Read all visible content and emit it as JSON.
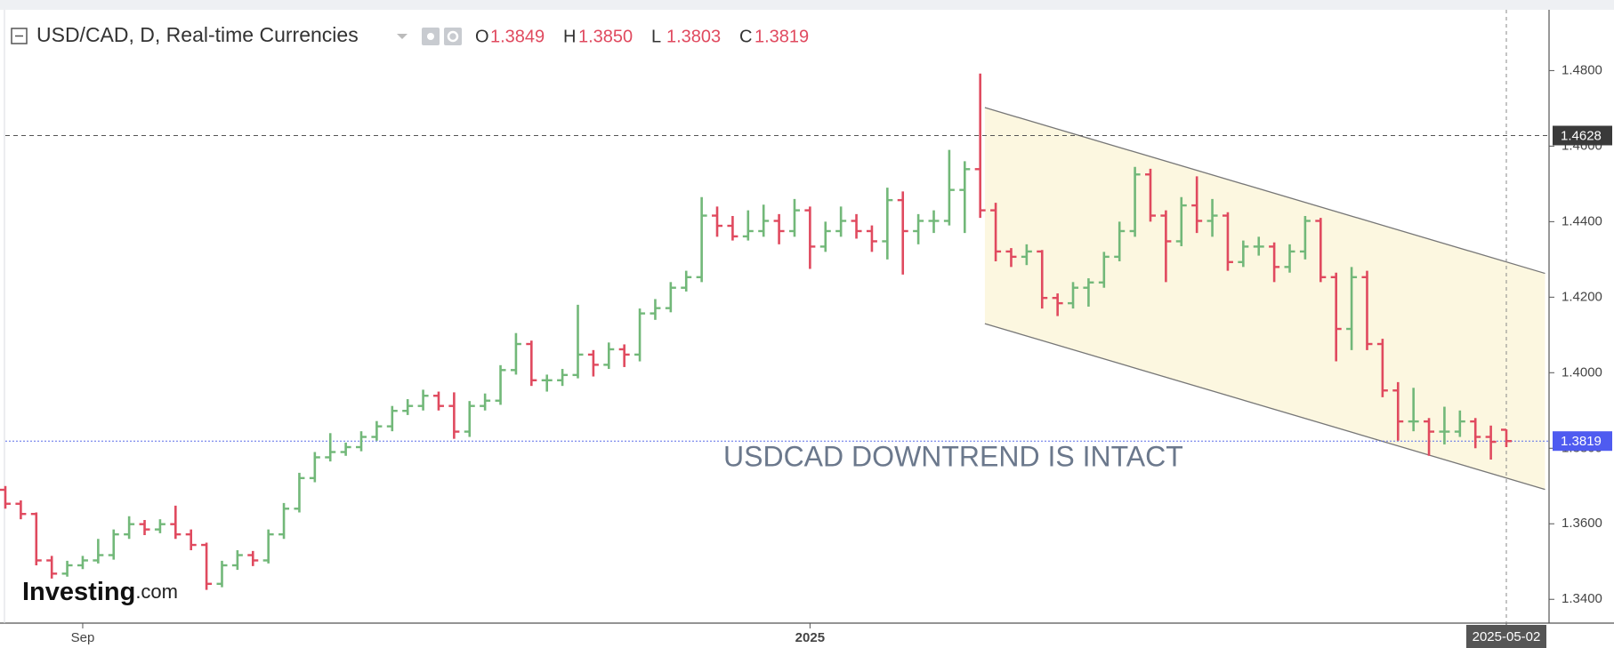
{
  "chart_data": {
    "type": "ohlc",
    "title": "USD/CAD, D, Real-time Currencies",
    "header_values": [
      {
        "key": "O",
        "text": "1.3849"
      },
      {
        "key": "H",
        "text": "1.3850"
      },
      {
        "key": "L",
        "text": "1.3803"
      },
      {
        "key": "C",
        "text": "1.3819"
      }
    ],
    "annotation": "USDCAD DOWNTREND IS INTACT",
    "logo": [
      "Investing",
      ".com"
    ],
    "up_color": "#72b879",
    "down_color": "#e04a5f",
    "categories": [
      null,
      null,
      null,
      null,
      null,
      "Sep",
      null,
      null,
      null,
      null,
      null,
      null,
      null,
      null,
      null,
      null,
      null,
      null,
      null,
      null,
      null,
      null,
      null,
      null,
      null,
      null,
      null,
      null,
      null,
      null,
      null,
      null,
      null,
      null,
      null,
      null,
      null,
      null,
      null,
      null,
      null,
      null,
      null,
      null,
      null,
      null,
      null,
      null,
      null,
      null,
      null,
      null,
      "2025",
      null,
      null,
      null,
      null,
      null,
      null,
      null,
      null,
      null,
      null,
      null,
      null,
      null,
      null,
      null,
      null,
      null,
      null,
      null,
      null,
      null,
      null,
      null,
      null,
      null,
      null,
      null,
      null,
      null,
      null,
      null,
      null,
      null,
      null,
      null,
      null,
      null,
      null,
      null,
      null,
      null,
      null,
      null,
      null,
      "2025-05-02"
    ],
    "open": [
      1.369,
      1.3653,
      1.3626,
      1.3503,
      1.3468,
      1.349,
      1.3503,
      1.3517,
      1.3572,
      1.3599,
      1.3585,
      1.3599,
      1.3572,
      1.3544,
      1.3441,
      1.349,
      1.3517,
      1.3503,
      1.3572,
      1.364,
      1.3721,
      1.3776,
      1.379,
      1.3803,
      1.383,
      1.3858,
      1.3899,
      1.3912,
      1.3939,
      1.3912,
      1.3844,
      1.3912,
      1.3926,
      1.4007,
      1.4076,
      1.398,
      1.398,
      1.3994,
      1.4048,
      1.4021,
      1.4062,
      1.4048,
      1.4157,
      1.4171,
      1.4225,
      1.4253,
      1.4416,
      1.4389,
      1.4361,
      1.4375,
      1.4402,
      1.4375,
      1.443,
      1.4334,
      1.4375,
      1.4402,
      1.4375,
      1.4348,
      1.4457,
      1.4375,
      1.4402,
      1.4402,
      1.4484,
      1.4539,
      1.443,
      1.4321,
      1.4307,
      1.4321,
      1.4198,
      1.4184,
      1.4225,
      1.4239,
      1.4307,
      1.4375,
      1.4525,
      1.4416,
      1.4348,
      1.4443,
      1.4402,
      1.4416,
      1.4293,
      1.4334,
      1.4334,
      1.428,
      1.4321,
      1.4402,
      1.4253,
      1.4116,
      1.4253,
      1.4076,
      1.3953,
      1.3871,
      1.3871,
      1.3844,
      1.3844,
      1.3871,
      1.383,
      1.3849
    ],
    "high": [
      1.37,
      1.3662,
      1.363,
      1.3515,
      1.3502,
      1.3515,
      1.356,
      1.3585,
      1.362,
      1.361,
      1.3612,
      1.3648,
      1.3585,
      1.355,
      1.3502,
      1.353,
      1.3528,
      1.3585,
      1.3655,
      1.3735,
      1.379,
      1.384,
      1.3815,
      1.3845,
      1.3872,
      1.3912,
      1.393,
      1.3955,
      1.395,
      1.3948,
      1.3925,
      1.3945,
      1.402,
      1.4105,
      1.4085,
      1.3995,
      1.401,
      1.418,
      1.406,
      1.408,
      1.4075,
      1.417,
      1.4195,
      1.424,
      1.427,
      1.4465,
      1.444,
      1.4415,
      1.443,
      1.4445,
      1.442,
      1.446,
      1.444,
      1.44,
      1.444,
      1.442,
      1.439,
      1.449,
      1.448,
      1.442,
      1.443,
      1.459,
      1.456,
      1.4792,
      1.445,
      1.433,
      1.434,
      1.4325,
      1.421,
      1.424,
      1.425,
      1.432,
      1.44,
      1.4545,
      1.454,
      1.443,
      1.4465,
      1.452,
      1.446,
      1.4425,
      1.435,
      1.436,
      1.4345,
      1.434,
      1.4415,
      1.441,
      1.4265,
      1.428,
      1.427,
      1.409,
      1.3975,
      1.396,
      1.388,
      1.391,
      1.39,
      1.388,
      1.386,
      1.385
    ],
    "low": [
      1.364,
      1.3612,
      1.349,
      1.3455,
      1.346,
      1.348,
      1.3495,
      1.3505,
      1.356,
      1.357,
      1.3575,
      1.356,
      1.353,
      1.3425,
      1.3432,
      1.3478,
      1.3488,
      1.3495,
      1.356,
      1.363,
      1.371,
      1.3765,
      1.378,
      1.3792,
      1.382,
      1.3845,
      1.3888,
      1.39,
      1.39,
      1.3825,
      1.383,
      1.39,
      1.3915,
      1.3995,
      1.3965,
      1.395,
      1.3965,
      1.3985,
      1.399,
      1.401,
      1.4015,
      1.403,
      1.414,
      1.416,
      1.4215,
      1.424,
      1.436,
      1.435,
      1.435,
      1.436,
      1.434,
      1.436,
      1.4275,
      1.432,
      1.436,
      1.4355,
      1.432,
      1.43,
      1.426,
      1.434,
      1.437,
      1.439,
      1.437,
      1.441,
      1.4295,
      1.428,
      1.4285,
      1.417,
      1.415,
      1.417,
      1.4175,
      1.4225,
      1.4295,
      1.436,
      1.44,
      1.424,
      1.4335,
      1.437,
      1.436,
      1.427,
      1.428,
      1.431,
      1.424,
      1.4265,
      1.43,
      1.424,
      1.403,
      1.406,
      1.406,
      1.3935,
      1.382,
      1.3845,
      1.378,
      1.381,
      1.383,
      1.38,
      1.377,
      1.3803
    ],
    "close": [
      1.3653,
      1.3626,
      1.3503,
      1.3468,
      1.349,
      1.3503,
      1.3517,
      1.3572,
      1.3599,
      1.3585,
      1.3599,
      1.3572,
      1.3544,
      1.3441,
      1.349,
      1.3517,
      1.3503,
      1.3572,
      1.364,
      1.3721,
      1.3776,
      1.379,
      1.3803,
      1.383,
      1.3858,
      1.3899,
      1.3912,
      1.3939,
      1.3912,
      1.3844,
      1.3912,
      1.3926,
      1.4007,
      1.4076,
      1.398,
      1.398,
      1.3994,
      1.4048,
      1.4021,
      1.4062,
      1.4048,
      1.4157,
      1.4171,
      1.4225,
      1.4253,
      1.4416,
      1.4389,
      1.4361,
      1.4375,
      1.4402,
      1.4375,
      1.443,
      1.4334,
      1.4375,
      1.4402,
      1.4375,
      1.4348,
      1.4457,
      1.4375,
      1.4402,
      1.4402,
      1.4484,
      1.4539,
      1.443,
      1.4321,
      1.4307,
      1.4321,
      1.4198,
      1.4184,
      1.4225,
      1.4239,
      1.4307,
      1.4375,
      1.4525,
      1.4416,
      1.4348,
      1.4443,
      1.4402,
      1.4416,
      1.4293,
      1.4334,
      1.4334,
      1.428,
      1.4321,
      1.4402,
      1.4253,
      1.4116,
      1.4253,
      1.4076,
      1.3953,
      1.3871,
      1.3871,
      1.3844,
      1.3844,
      1.3871,
      1.383,
      1.3817,
      1.3819
    ],
    "ylim": [
      1.3337,
      1.4961
    ],
    "yticks": [
      {
        "value": 1.34,
        "label": "1.3400"
      },
      {
        "value": 1.36,
        "label": "1.3600"
      },
      {
        "value": 1.38,
        "label": "1.3800"
      },
      {
        "value": 1.4,
        "label": "1.4000"
      },
      {
        "value": 1.42,
        "label": "1.4200"
      },
      {
        "value": 1.44,
        "label": "1.4400"
      },
      {
        "value": 1.46,
        "label": "1.4600"
      },
      {
        "value": 1.48,
        "label": "1.4800"
      }
    ],
    "price_lines": [
      {
        "value": 1.4628,
        "color": "#555555",
        "tag_color": "#3a3a3a"
      },
      {
        "value": 1.3819,
        "color": "#5b6ee8",
        "tag_color": "#4f5bf0"
      }
    ],
    "channel": {
      "x": [
        63.3,
        99.5
      ],
      "upper": [
        1.4702,
        1.4263
      ],
      "lower": [
        1.413,
        1.3691
      ],
      "fill": "#fcf7e0",
      "color": "#777777"
    }
  }
}
